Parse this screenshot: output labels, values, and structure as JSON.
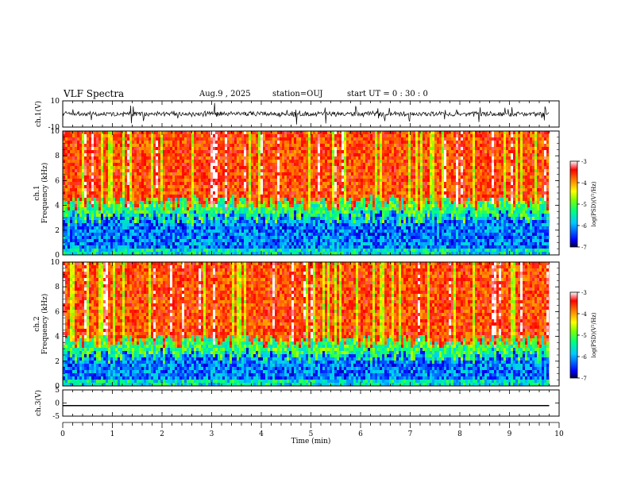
{
  "header": {
    "title": "VLF Spectra",
    "date": "Aug.9 , 2025",
    "station": "station=OUJ",
    "start": "start UT = 0 : 30 : 0"
  },
  "chart_data": [
    {
      "type": "line",
      "panel": "ch1-waveform",
      "ylabel": "ch.1(V)",
      "ylim": [
        -10,
        10
      ],
      "y_ticks": [
        "10",
        "-10"
      ],
      "xlim": [
        0,
        10
      ],
      "x_end_data": 9.8,
      "baseline_v": 0,
      "bursts_min": [
        0.2,
        0.55,
        0.95,
        1.4,
        1.65,
        2.3,
        2.85,
        3.05,
        3.5,
        4.1,
        4.7,
        5.3,
        5.9,
        6.5,
        7.0,
        7.7,
        8.4,
        9.0,
        9.7
      ]
    },
    {
      "type": "heatmap",
      "panel": "ch1-spectrogram",
      "ylabel": "ch.1 Frequency (kHz)",
      "ylabel_line1": "ch.1",
      "ylabel_line2": "Frequency (kHz)",
      "ylim": [
        0,
        10
      ],
      "y_ticks": [
        "0",
        "2",
        "4",
        "6",
        "8",
        "10"
      ],
      "xlim": [
        0,
        10
      ],
      "x_end_data": 9.8,
      "colorbar": {
        "label": "log(PSD)(V²/Hz)",
        "ticks": [
          "-3",
          "-4",
          "-5",
          "-6",
          "-7"
        ],
        "range": [
          -7,
          -3
        ]
      }
    },
    {
      "type": "heatmap",
      "panel": "ch2-spectrogram",
      "ylabel": "ch.2 Frequency (kHz)",
      "ylabel_line1": "ch.2",
      "ylabel_line2": "Frequency (kHz)",
      "ylim": [
        0,
        10
      ],
      "y_ticks": [
        "0",
        "2",
        "4",
        "6",
        "8",
        "10"
      ],
      "xlim": [
        0,
        10
      ],
      "x_end_data": 9.8,
      "colorbar": {
        "label": "log(PSD)(V²/Hz)",
        "ticks": [
          "-3",
          "-4",
          "-5",
          "-6",
          "-7"
        ],
        "range": [
          -7,
          -3
        ]
      }
    },
    {
      "type": "line",
      "panel": "ch3-waveform",
      "ylabel": "ch.3(V)",
      "ylim": [
        -5,
        5
      ],
      "y_ticks": [
        "5",
        "0",
        "-5"
      ],
      "xlim": [
        0,
        10
      ],
      "x_end_data": 9.8,
      "constant_value_v": -1,
      "xlabel": "Time (min)",
      "x_ticks": [
        "0",
        "1",
        "2",
        "3",
        "4",
        "5",
        "6",
        "7",
        "8",
        "9",
        "10"
      ]
    }
  ],
  "colors": {
    "frame": "#000000",
    "colormap": [
      "#00007f",
      "#0000ff",
      "#00bfff",
      "#00ffcc",
      "#33ff33",
      "#ffff00",
      "#ff9900",
      "#ff2200",
      "#ff9999",
      "#ffffff"
    ]
  }
}
